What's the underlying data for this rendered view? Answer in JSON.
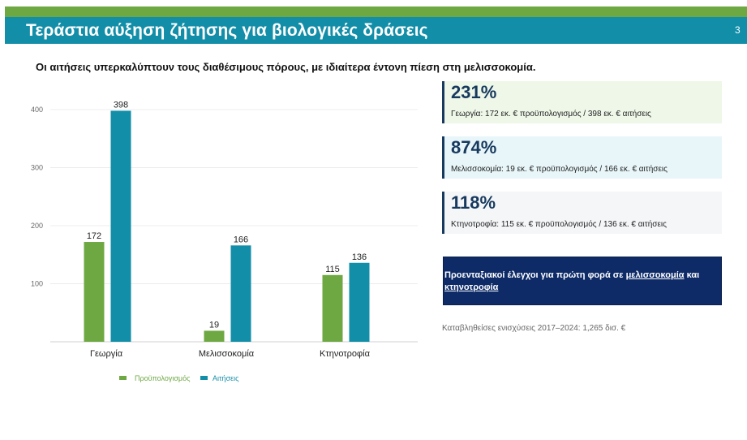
{
  "slide": {
    "title": "Τεράστια αύξηση ζήτησης για βιολογικές δράσεις",
    "page_number": "3",
    "subtitle": "Οι αιτήσεις υπερκαλύπτουν τους διαθέσιμους πόρους, με ιδιαίτερα έντονη πίεση στη μελισσοκομία."
  },
  "colors": {
    "green": "#6ea843",
    "teal": "#138ea8",
    "navy": "#17395e",
    "dark_blue": "#0e2b68"
  },
  "chart_data": {
    "type": "bar",
    "categories": [
      "Γεωργία",
      "Μελισσοκομία",
      "Κτηνοτροφία"
    ],
    "series": [
      {
        "name": "Προϋπολογισμός",
        "values": [
          172,
          19,
          115
        ],
        "color": "#6ea843"
      },
      {
        "name": "Αιτήσεις",
        "values": [
          398,
          166,
          136
        ],
        "color": "#138ea8"
      }
    ],
    "yticks": [
      100,
      200,
      300,
      400
    ],
    "ylim": [
      0,
      410
    ],
    "grid": true,
    "legend": "bottom"
  },
  "stats": [
    {
      "value": "231%",
      "desc": "Γεωργία: 172 εκ. € προϋπολογισμός / 398 εκ. € αιτήσεις",
      "bg": "#eef7e8"
    },
    {
      "value": "874%",
      "desc": "Μελισσοκομία: 19 εκ. € προϋπολογισμός / 166 εκ. € αιτήσεις",
      "bg": "#e8f6fa"
    },
    {
      "value": "118%",
      "desc": "Κτηνοτροφία: 115 εκ. € προϋπολογισμός / 136 εκ. € αιτήσεις",
      "bg": "#f4f6f8"
    }
  ],
  "cta": {
    "part1": "Προενταξιακοί έλεγχοι για πρώτη φορά σε ",
    "link1": "μελισσοκομία",
    "part2": " και ",
    "link2": "κτηνοτροφία"
  },
  "footnote": "Καταβληθείσες ενισχύσεις 2017–2024: 1,265 δισ. €"
}
